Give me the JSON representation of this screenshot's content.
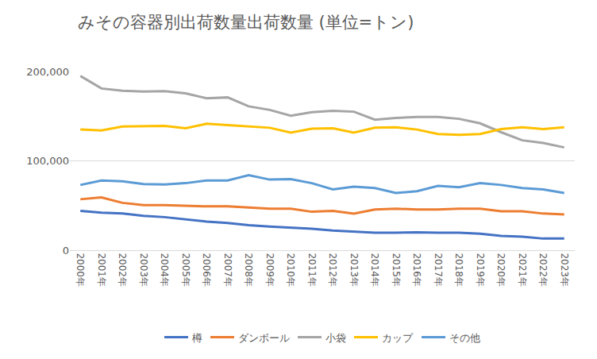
{
  "chart_data": {
    "type": "line",
    "title": "みその容器別出荷数量出荷数量 (単位=トン)",
    "categories": [
      "2000年",
      "2001年",
      "2002年",
      "2003年",
      "2004年",
      "2005年",
      "2006年",
      "2007年",
      "2008年",
      "2009年",
      "2010年",
      "2011年",
      "2012年",
      "2013年",
      "2014年",
      "2015年",
      "2016年",
      "2017年",
      "2018年",
      "2019年",
      "2020年",
      "2021年",
      "2022年",
      "2023年"
    ],
    "series": [
      {
        "name": "樽",
        "color": "#4472c4",
        "values": [
          44000,
          42000,
          41000,
          38500,
          37000,
          34500,
          32000,
          30500,
          28000,
          26500,
          25500,
          24000,
          22000,
          20500,
          19500,
          19500,
          20000,
          19500,
          19500,
          18500,
          16000,
          15000,
          13000,
          13000
        ]
      },
      {
        "name": "ダンボール",
        "color": "#ed7d31",
        "values": [
          57000,
          59000,
          53000,
          50500,
          50500,
          49500,
          49000,
          49000,
          48000,
          46500,
          46500,
          43000,
          44000,
          41000,
          45500,
          46500,
          45500,
          45500,
          46500,
          46500,
          43500,
          43500,
          41000,
          40000
        ]
      },
      {
        "name": "小袋",
        "color": "#a5a5a5",
        "values": [
          195000,
          181000,
          178500,
          177500,
          178000,
          175500,
          170000,
          171000,
          161000,
          157000,
          150500,
          154500,
          156000,
          155000,
          146000,
          148000,
          149000,
          149000,
          147000,
          142000,
          132000,
          123000,
          120000,
          115000
        ]
      },
      {
        "name": "カップ",
        "color": "#ffc000",
        "values": [
          135000,
          134000,
          138500,
          138500,
          139000,
          136500,
          141500,
          140000,
          138500,
          137000,
          131500,
          136000,
          136500,
          131500,
          137000,
          137500,
          135000,
          130000,
          129000,
          130000,
          135500,
          137500,
          135500,
          137500
        ]
      },
      {
        "name": "その他",
        "color": "#5b9bd5",
        "values": [
          73000,
          78000,
          77000,
          74000,
          73500,
          75000,
          78000,
          78000,
          84000,
          79000,
          79500,
          75000,
          68000,
          71000,
          69500,
          64000,
          66000,
          72000,
          70500,
          75000,
          73000,
          69500,
          68000,
          64000
        ]
      }
    ],
    "ylim": [
      0,
      200000
    ],
    "yticks": [
      0,
      {
        "value": 100000,
        "label": "100,000"
      },
      {
        "value": 200000,
        "label": "200,000"
      }
    ],
    "grid": true,
    "legend": "bottom"
  }
}
